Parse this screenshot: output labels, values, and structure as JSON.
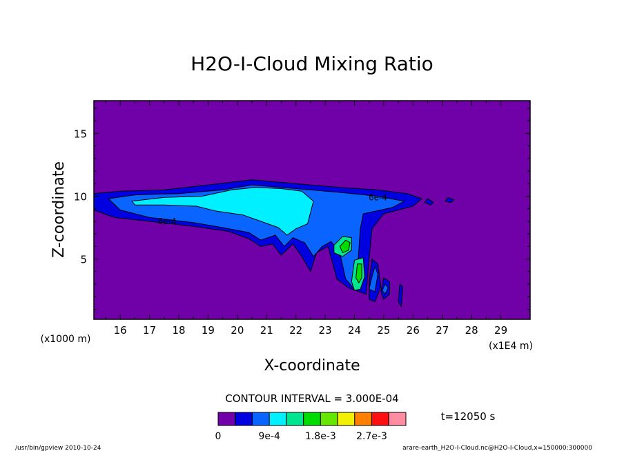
{
  "chart_data": {
    "type": "contour",
    "title": "H2O-I-Cloud Mixing Ratio",
    "xlabel": "X-coordinate",
    "ylabel": "Z-coordinate",
    "x_unit": "(x1E4 m)",
    "y_unit": "(x1000 m)",
    "xlim": [
      15.1,
      30.0
    ],
    "ylim": [
      0.2,
      17.6
    ],
    "x_ticks": [
      16,
      17,
      18,
      19,
      20,
      21,
      22,
      23,
      24,
      25,
      26,
      27,
      28,
      29
    ],
    "y_ticks": [
      5,
      10,
      15
    ],
    "contour_interval_label": "CONTOUR INTERVAL = 3.000E-04",
    "time_label": "t=12050 s",
    "contour_labels": [
      {
        "text": "6e-4",
        "x": 24.8,
        "z": 9.9
      },
      {
        "text": "6e-4",
        "x": 17.6,
        "z": 8.0
      }
    ],
    "levels": [
      0,
      0.0003,
      0.0006,
      0.0009,
      0.0012,
      0.0015,
      0.0018,
      0.0021,
      0.0024,
      0.0027,
      0.003
    ],
    "colors": [
      "#7000a8",
      "#0000e0",
      "#0a64ff",
      "#00f0ff",
      "#00e690",
      "#00dc00",
      "#64e600",
      "#f0f000",
      "#ff8000",
      "#ff1010",
      "#ff8ca0"
    ],
    "colorbar_labels": [
      "0",
      "9e-4",
      "1.8e-3",
      "2.7e-3"
    ],
    "colorbar_label_levels": [
      0,
      0.0009,
      0.0018,
      0.0027
    ],
    "regions": [
      {
        "level": 1,
        "points": [
          [
            15.1,
            10.2
          ],
          [
            16.0,
            10.4
          ],
          [
            17.5,
            10.5
          ],
          [
            19.0,
            10.9
          ],
          [
            20.5,
            11.3
          ],
          [
            22.0,
            11.0
          ],
          [
            23.5,
            10.7
          ],
          [
            24.8,
            10.5
          ],
          [
            25.8,
            10.2
          ],
          [
            26.3,
            9.8
          ],
          [
            26.0,
            9.2
          ],
          [
            25.0,
            8.6
          ],
          [
            24.6,
            7.4
          ],
          [
            24.5,
            5.0
          ],
          [
            24.4,
            2.2
          ],
          [
            23.8,
            2.7
          ],
          [
            23.4,
            3.4
          ],
          [
            23.1,
            6.0
          ],
          [
            22.7,
            5.5
          ],
          [
            22.5,
            4.0
          ],
          [
            22.2,
            5.2
          ],
          [
            21.9,
            6.2
          ],
          [
            21.5,
            5.3
          ],
          [
            21.2,
            6.2
          ],
          [
            20.8,
            6.0
          ],
          [
            20.4,
            6.6
          ],
          [
            19.7,
            7.2
          ],
          [
            18.5,
            7.6
          ],
          [
            17.0,
            8.0
          ],
          [
            15.8,
            8.3
          ],
          [
            15.1,
            8.9
          ]
        ]
      },
      {
        "level": 1,
        "points": [
          [
            24.6,
            5.0
          ],
          [
            24.8,
            4.6
          ],
          [
            24.9,
            2.8
          ],
          [
            24.7,
            1.6
          ],
          [
            24.5,
            1.8
          ],
          [
            24.5,
            3.2
          ]
        ]
      },
      {
        "level": 1,
        "points": [
          [
            25.0,
            3.5
          ],
          [
            25.2,
            3.2
          ],
          [
            25.2,
            2.2
          ],
          [
            25.0,
            1.8
          ],
          [
            24.9,
            2.4
          ]
        ]
      },
      {
        "level": 1,
        "points": [
          [
            25.55,
            3.0
          ],
          [
            25.65,
            2.8
          ],
          [
            25.6,
            1.2
          ],
          [
            25.5,
            1.6
          ]
        ]
      },
      {
        "level": 1,
        "points": [
          [
            26.5,
            9.8
          ],
          [
            26.7,
            9.5
          ],
          [
            26.6,
            9.3
          ],
          [
            26.4,
            9.5
          ]
        ]
      },
      {
        "level": 1,
        "points": [
          [
            27.2,
            9.9
          ],
          [
            27.4,
            9.7
          ],
          [
            27.3,
            9.5
          ],
          [
            27.1,
            9.6
          ]
        ]
      },
      {
        "level": 2,
        "points": [
          [
            15.6,
            9.8
          ],
          [
            16.5,
            10.1
          ],
          [
            18.0,
            10.2
          ],
          [
            19.5,
            10.5
          ],
          [
            20.5,
            10.9
          ],
          [
            22.0,
            10.6
          ],
          [
            23.5,
            10.3
          ],
          [
            24.8,
            10.0
          ],
          [
            25.7,
            9.6
          ],
          [
            25.3,
            9.1
          ],
          [
            24.3,
            8.6
          ],
          [
            24.2,
            7.4
          ],
          [
            24.1,
            4.0
          ],
          [
            24.0,
            2.6
          ],
          [
            23.7,
            3.4
          ],
          [
            23.5,
            5.5
          ],
          [
            23.2,
            6.4
          ],
          [
            22.9,
            6.0
          ],
          [
            22.6,
            5.2
          ],
          [
            22.3,
            6.3
          ],
          [
            21.9,
            6.7
          ],
          [
            21.6,
            6.0
          ],
          [
            21.3,
            6.9
          ],
          [
            20.8,
            6.5
          ],
          [
            20.4,
            7.1
          ],
          [
            19.5,
            7.5
          ],
          [
            18.5,
            7.9
          ],
          [
            17.0,
            8.3
          ],
          [
            16.0,
            8.9
          ]
        ]
      },
      {
        "level": 2,
        "points": [
          [
            24.7,
            4.4
          ],
          [
            24.8,
            3.8
          ],
          [
            24.7,
            2.4
          ],
          [
            24.5,
            2.6
          ],
          [
            24.6,
            3.6
          ]
        ]
      },
      {
        "level": 2,
        "points": [
          [
            25.05,
            3.0
          ],
          [
            25.15,
            2.7
          ],
          [
            25.05,
            2.2
          ],
          [
            24.95,
            2.5
          ]
        ]
      },
      {
        "level": 3,
        "points": [
          [
            16.4,
            9.6
          ],
          [
            17.5,
            9.9
          ],
          [
            18.8,
            10.0
          ],
          [
            19.8,
            10.5
          ],
          [
            20.6,
            10.7
          ],
          [
            21.5,
            10.6
          ],
          [
            22.2,
            10.4
          ],
          [
            22.6,
            9.6
          ],
          [
            22.4,
            7.8
          ],
          [
            22.0,
            7.4
          ],
          [
            21.7,
            6.9
          ],
          [
            21.4,
            7.5
          ],
          [
            20.8,
            8.0
          ],
          [
            20.2,
            8.5
          ],
          [
            19.3,
            8.8
          ],
          [
            18.6,
            9.2
          ],
          [
            17.5,
            9.3
          ],
          [
            16.5,
            9.3
          ]
        ]
      },
      {
        "level": 4,
        "points": [
          [
            23.3,
            6.1
          ],
          [
            23.6,
            6.8
          ],
          [
            23.9,
            6.7
          ],
          [
            23.9,
            5.7
          ],
          [
            23.6,
            5.2
          ],
          [
            23.3,
            5.5
          ]
        ]
      },
      {
        "level": 4,
        "points": [
          [
            23.9,
            3.2
          ],
          [
            24.0,
            4.9
          ],
          [
            24.3,
            5.1
          ],
          [
            24.35,
            3.6
          ],
          [
            24.2,
            2.6
          ],
          [
            24.0,
            2.5
          ]
        ]
      },
      {
        "level": 5,
        "points": [
          [
            23.5,
            6.0
          ],
          [
            23.7,
            6.5
          ],
          [
            23.85,
            6.3
          ],
          [
            23.8,
            5.7
          ],
          [
            23.6,
            5.5
          ]
        ]
      },
      {
        "level": 5,
        "points": [
          [
            24.05,
            3.5
          ],
          [
            24.1,
            4.6
          ],
          [
            24.25,
            4.6
          ],
          [
            24.25,
            3.5
          ],
          [
            24.15,
            3.1
          ]
        ]
      }
    ]
  },
  "footer": {
    "left": "/usr/bin/gpview  2010-10-24",
    "right": "arare-earth_H2O-I-Cloud.nc@H2O-I-Cloud,x=150000:300000"
  }
}
